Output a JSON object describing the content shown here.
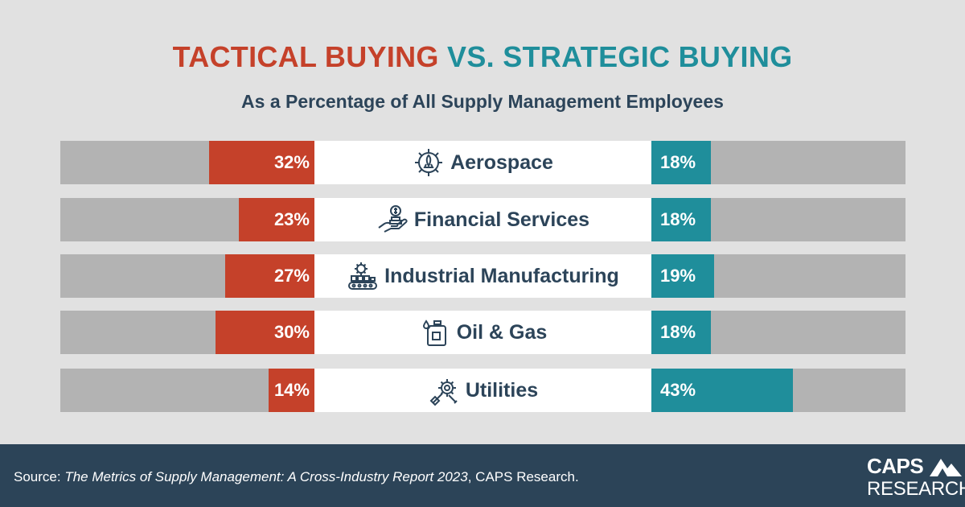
{
  "header": {
    "title_part1": "TACTICAL BUYING",
    "title_part2": "VS. STRATEGIC BUYING",
    "subtitle": "As a Percentage of All Supply Management Employees"
  },
  "colors": {
    "tactical": "#c5412a",
    "strategic": "#1f8e9b",
    "track": "#b3b3b3",
    "label_background": "#ffffff",
    "text_dark": "#2c4459",
    "footer_background": "#2c4458"
  },
  "chart_data": {
    "type": "bar",
    "orientation": "horizontal-diverging",
    "title": "TACTICAL BUYING VS. STRATEGIC BUYING",
    "subtitle": "As a Percentage of All Supply Management Employees",
    "categories": [
      "Aerospace",
      "Financial Services",
      "Industrial Manufacturing",
      "Oil & Gas",
      "Utilities"
    ],
    "icons": [
      "gear-rocket-icon",
      "hand-money-icon",
      "factory-conveyor-icon",
      "oil-can-icon",
      "wrench-gear-icon"
    ],
    "series": [
      {
        "name": "TACTICAL BUYING",
        "values": [
          32,
          23,
          27,
          30,
          14
        ],
        "labels": [
          "32%",
          "23%",
          "27%",
          "30%",
          "14%"
        ]
      },
      {
        "name": "STRATEGIC BUYING",
        "values": [
          18,
          18,
          19,
          18,
          43
        ],
        "labels": [
          "18%",
          "18%",
          "19%",
          "18%",
          "43%"
        ]
      }
    ],
    "unit": "%",
    "grid": false
  },
  "footer": {
    "source_prefix": "Source: ",
    "source_title": "The Metrics of Supply Management: A Cross-Industry Report 2023",
    "source_suffix": ", CAPS Research.",
    "logo_line1": "CAPS",
    "logo_line2": "RESEARCH"
  }
}
